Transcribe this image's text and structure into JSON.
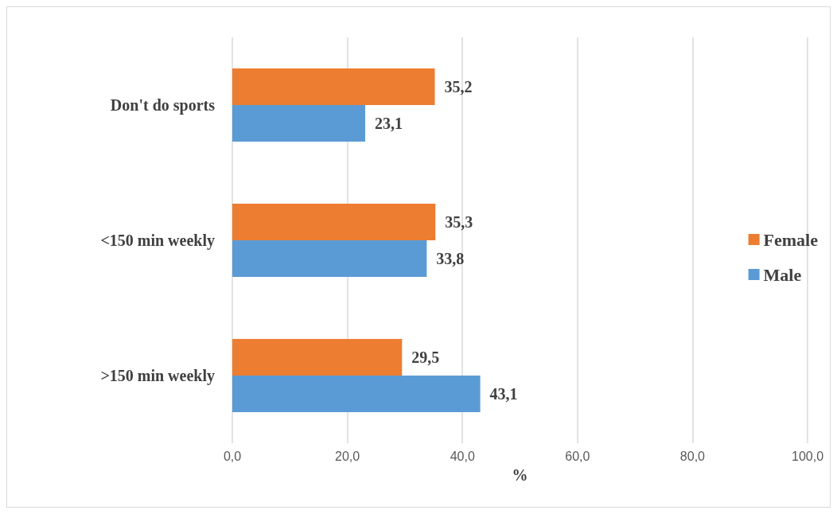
{
  "chart_data": {
    "type": "bar",
    "orientation": "horizontal",
    "xlabel": "%",
    "categories": [
      "Don't do sports",
      "<150 min weekly",
      ">150 min weekly"
    ],
    "series": [
      {
        "name": "Male",
        "color": "#5b9bd5",
        "values": [
          23.1,
          33.8,
          43.1
        ],
        "value_labels": [
          "23,1",
          "33,8",
          "43,1"
        ]
      },
      {
        "name": "Female",
        "color": "#ed7d31",
        "values": [
          35.2,
          35.3,
          29.5
        ],
        "value_labels": [
          "35,2",
          "35,3",
          "29,5"
        ]
      }
    ],
    "xlim": [
      0,
      100
    ],
    "xticks": [
      {
        "value": 0,
        "label": "0,0"
      },
      {
        "value": 20,
        "label": "20,0"
      },
      {
        "value": 40,
        "label": "40,0"
      },
      {
        "value": 60,
        "label": "60,0"
      },
      {
        "value": 80,
        "label": "80,0"
      },
      {
        "value": 100,
        "label": "100,0"
      }
    ],
    "grid": "x",
    "legend": "right"
  }
}
